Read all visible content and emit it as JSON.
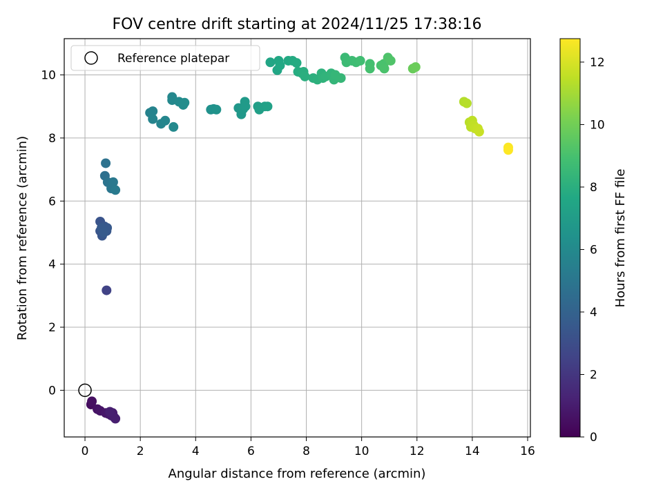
{
  "chart_data": {
    "type": "scatter",
    "title": "FOV centre drift starting at 2024/11/25 17:38:16",
    "xlabel": "Angular distance from reference (arcmin)",
    "ylabel": "Rotation from reference (arcmin)",
    "xlim": [
      -0.75,
      16.1
    ],
    "ylim": [
      -1.48,
      11.15
    ],
    "xticks": [
      0,
      2,
      4,
      6,
      8,
      10,
      12,
      14,
      16
    ],
    "yticks": [
      0,
      2,
      4,
      6,
      8,
      10
    ],
    "grid": true,
    "legend": {
      "label": "Reference platepar",
      "position": "top-left"
    },
    "reference_point": {
      "x": 0,
      "y": 0
    },
    "colorbar": {
      "label": "Hours from first FF file",
      "min": 0,
      "max": 12.75,
      "ticks": [
        0,
        2,
        4,
        6,
        8,
        10,
        12
      ],
      "colormap": "viridis"
    },
    "series": [
      {
        "points": [
          {
            "x": 0.22,
            "y": -0.45,
            "h": 0.4
          },
          {
            "x": 0.25,
            "y": -0.35,
            "h": 0.5
          },
          {
            "x": 0.45,
            "y": -0.6,
            "h": 0.6
          },
          {
            "x": 0.55,
            "y": -0.65,
            "h": 0.7
          },
          {
            "x": 0.75,
            "y": -0.72,
            "h": 0.8
          },
          {
            "x": 0.85,
            "y": -0.75,
            "h": 0.85
          },
          {
            "x": 0.95,
            "y": -0.8,
            "h": 0.9
          },
          {
            "x": 1.0,
            "y": -0.72,
            "h": 0.95
          },
          {
            "x": 1.05,
            "y": -0.85,
            "h": 1.0
          },
          {
            "x": 1.1,
            "y": -0.9,
            "h": 1.05
          },
          {
            "x": 0.9,
            "y": -0.68,
            "h": 1.1
          },
          {
            "x": 0.78,
            "y": 3.17,
            "h": 2.5
          },
          {
            "x": 0.55,
            "y": 5.35,
            "h": 3.3
          },
          {
            "x": 0.55,
            "y": 5.05,
            "h": 3.35
          },
          {
            "x": 0.62,
            "y": 4.9,
            "h": 3.4
          },
          {
            "x": 0.7,
            "y": 5.2,
            "h": 3.45
          },
          {
            "x": 0.78,
            "y": 5.05,
            "h": 3.5
          },
          {
            "x": 0.8,
            "y": 5.15,
            "h": 3.55
          },
          {
            "x": 0.6,
            "y": 5.15,
            "h": 3.6
          },
          {
            "x": 0.68,
            "y": 5.0,
            "h": 3.65
          },
          {
            "x": 0.72,
            "y": 6.8,
            "h": 4.7
          },
          {
            "x": 0.75,
            "y": 7.2,
            "h": 4.8
          },
          {
            "x": 0.82,
            "y": 6.6,
            "h": 4.9
          },
          {
            "x": 0.95,
            "y": 6.4,
            "h": 5.0
          },
          {
            "x": 1.02,
            "y": 6.6,
            "h": 5.1
          },
          {
            "x": 1.1,
            "y": 6.35,
            "h": 5.2
          },
          {
            "x": 2.35,
            "y": 8.8,
            "h": 5.6
          },
          {
            "x": 2.45,
            "y": 8.85,
            "h": 5.65
          },
          {
            "x": 2.45,
            "y": 8.6,
            "h": 5.7
          },
          {
            "x": 2.75,
            "y": 8.45,
            "h": 5.75
          },
          {
            "x": 2.9,
            "y": 8.55,
            "h": 5.8
          },
          {
            "x": 3.15,
            "y": 9.3,
            "h": 5.85
          },
          {
            "x": 3.15,
            "y": 9.2,
            "h": 5.9
          },
          {
            "x": 3.2,
            "y": 8.35,
            "h": 5.95
          },
          {
            "x": 3.4,
            "y": 9.15,
            "h": 6.0
          },
          {
            "x": 3.55,
            "y": 9.05,
            "h": 6.1
          },
          {
            "x": 3.6,
            "y": 9.12,
            "h": 6.15
          },
          {
            "x": 4.55,
            "y": 8.9,
            "h": 6.4
          },
          {
            "x": 4.65,
            "y": 8.92,
            "h": 6.45
          },
          {
            "x": 4.75,
            "y": 8.9,
            "h": 6.5
          },
          {
            "x": 5.55,
            "y": 8.95,
            "h": 6.7
          },
          {
            "x": 5.65,
            "y": 8.75,
            "h": 6.75
          },
          {
            "x": 5.72,
            "y": 8.92,
            "h": 6.8
          },
          {
            "x": 5.78,
            "y": 9.15,
            "h": 6.85
          },
          {
            "x": 5.8,
            "y": 9.0,
            "h": 6.9
          },
          {
            "x": 6.25,
            "y": 9.0,
            "h": 7.1
          },
          {
            "x": 6.3,
            "y": 8.9,
            "h": 7.15
          },
          {
            "x": 6.5,
            "y": 9.0,
            "h": 7.2
          },
          {
            "x": 6.6,
            "y": 9.0,
            "h": 7.25
          },
          {
            "x": 6.7,
            "y": 10.4,
            "h": 7.5
          },
          {
            "x": 6.95,
            "y": 10.15,
            "h": 7.55
          },
          {
            "x": 7.0,
            "y": 10.45,
            "h": 7.6
          },
          {
            "x": 7.05,
            "y": 10.3,
            "h": 7.65
          },
          {
            "x": 7.35,
            "y": 10.45,
            "h": 7.7
          },
          {
            "x": 7.5,
            "y": 10.45,
            "h": 7.75
          },
          {
            "x": 7.65,
            "y": 10.38,
            "h": 7.8
          },
          {
            "x": 7.7,
            "y": 10.1,
            "h": 7.85
          },
          {
            "x": 7.85,
            "y": 10.05,
            "h": 7.9
          },
          {
            "x": 7.9,
            "y": 10.1,
            "h": 7.95
          },
          {
            "x": 7.95,
            "y": 9.95,
            "h": 8.0
          },
          {
            "x": 8.25,
            "y": 9.9,
            "h": 8.05
          },
          {
            "x": 8.4,
            "y": 9.85,
            "h": 8.1
          },
          {
            "x": 8.55,
            "y": 10.05,
            "h": 8.15
          },
          {
            "x": 8.6,
            "y": 9.9,
            "h": 8.2
          },
          {
            "x": 8.7,
            "y": 9.95,
            "h": 8.25
          },
          {
            "x": 8.9,
            "y": 10.05,
            "h": 8.3
          },
          {
            "x": 9.0,
            "y": 9.85,
            "h": 8.35
          },
          {
            "x": 9.05,
            "y": 10.0,
            "h": 8.4
          },
          {
            "x": 9.25,
            "y": 9.9,
            "h": 8.45
          },
          {
            "x": 9.4,
            "y": 10.55,
            "h": 8.6
          },
          {
            "x": 9.45,
            "y": 10.4,
            "h": 8.65
          },
          {
            "x": 9.65,
            "y": 10.45,
            "h": 8.7
          },
          {
            "x": 9.8,
            "y": 10.4,
            "h": 8.75
          },
          {
            "x": 9.95,
            "y": 10.45,
            "h": 8.8
          },
          {
            "x": 10.3,
            "y": 10.35,
            "h": 8.9
          },
          {
            "x": 10.3,
            "y": 10.2,
            "h": 8.95
          },
          {
            "x": 10.7,
            "y": 10.3,
            "h": 9.0
          },
          {
            "x": 10.8,
            "y": 10.35,
            "h": 9.05
          },
          {
            "x": 10.82,
            "y": 10.2,
            "h": 9.1
          },
          {
            "x": 10.95,
            "y": 10.55,
            "h": 9.15
          },
          {
            "x": 11.05,
            "y": 10.45,
            "h": 9.2
          },
          {
            "x": 11.85,
            "y": 10.2,
            "h": 9.8
          },
          {
            "x": 11.95,
            "y": 10.25,
            "h": 9.85
          },
          {
            "x": 13.7,
            "y": 9.15,
            "h": 11.3
          },
          {
            "x": 13.8,
            "y": 9.1,
            "h": 11.35
          },
          {
            "x": 13.9,
            "y": 8.5,
            "h": 11.4
          },
          {
            "x": 13.95,
            "y": 8.35,
            "h": 11.45
          },
          {
            "x": 14.0,
            "y": 8.55,
            "h": 11.5
          },
          {
            "x": 14.05,
            "y": 8.4,
            "h": 11.55
          },
          {
            "x": 14.1,
            "y": 8.3,
            "h": 11.6
          },
          {
            "x": 14.2,
            "y": 8.3,
            "h": 11.65
          },
          {
            "x": 14.25,
            "y": 8.2,
            "h": 11.7
          },
          {
            "x": 15.3,
            "y": 7.7,
            "h": 12.7
          },
          {
            "x": 15.3,
            "y": 7.62,
            "h": 12.75
          }
        ]
      }
    ]
  }
}
